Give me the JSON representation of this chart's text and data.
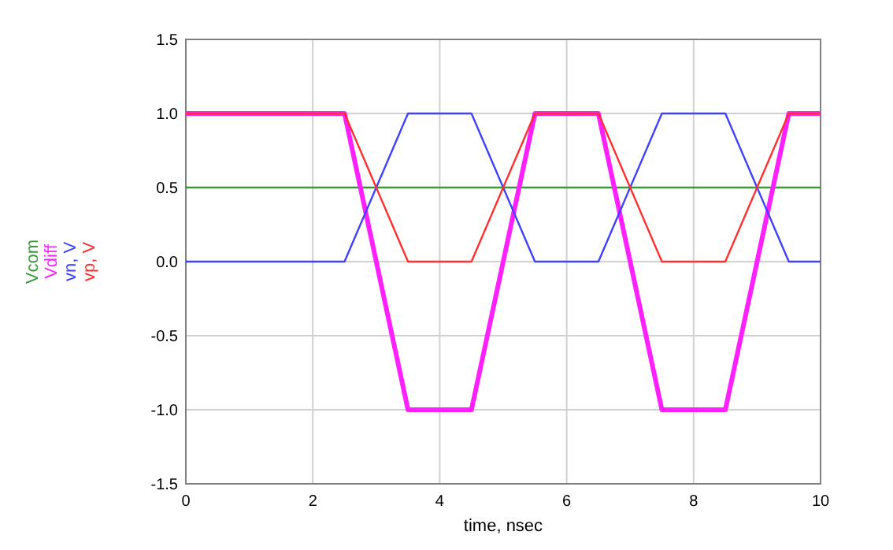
{
  "chart_data": {
    "type": "line",
    "xlabel": "time, nsec",
    "xlim": [
      0,
      10
    ],
    "xticks": [
      0,
      2,
      4,
      6,
      8,
      10
    ],
    "ylim": [
      -1.5,
      1.5
    ],
    "yticks": [
      {
        "value": -1.5,
        "label": "-1.5"
      },
      {
        "value": -1,
        "label": "-1.0"
      },
      {
        "value": -0.5,
        "label": "-0.5"
      },
      {
        "value": 0,
        "label": "0.0"
      },
      {
        "value": 0.5,
        "label": "0.5"
      },
      {
        "value": 1,
        "label": "1.0"
      },
      {
        "value": 1.5,
        "label": "1.5"
      }
    ],
    "grid": true,
    "legend": "left",
    "line_style": "solid",
    "marker": "none",
    "series": [
      {
        "name": "Vcom",
        "color": "#3a9a3a",
        "x": [
          0,
          10
        ],
        "values": [
          0.5,
          0.5
        ]
      },
      {
        "name": "Vdiff",
        "color": "#ff20ff",
        "x": [
          0,
          2.5,
          3.5,
          4.5,
          5.5,
          6.5,
          7.5,
          8.5,
          9.5,
          10
        ],
        "values": [
          1,
          1,
          -1,
          -1,
          1,
          1,
          -1,
          -1,
          1,
          1
        ]
      },
      {
        "name": "vn, V",
        "color": "#4040ff",
        "x": [
          0,
          2.5,
          3.5,
          4.5,
          5.5,
          6.5,
          7.5,
          8.5,
          9.5,
          10
        ],
        "values": [
          0,
          0,
          1,
          1,
          0,
          0,
          1,
          1,
          0,
          0
        ]
      },
      {
        "name": "vp, V",
        "color": "#ff3030",
        "x": [
          0,
          2.5,
          3.5,
          4.5,
          5.5,
          6.5,
          7.5,
          8.5,
          9.5,
          10
        ],
        "values": [
          1,
          1,
          0,
          0,
          1,
          1,
          0,
          0,
          1,
          1
        ]
      }
    ]
  }
}
